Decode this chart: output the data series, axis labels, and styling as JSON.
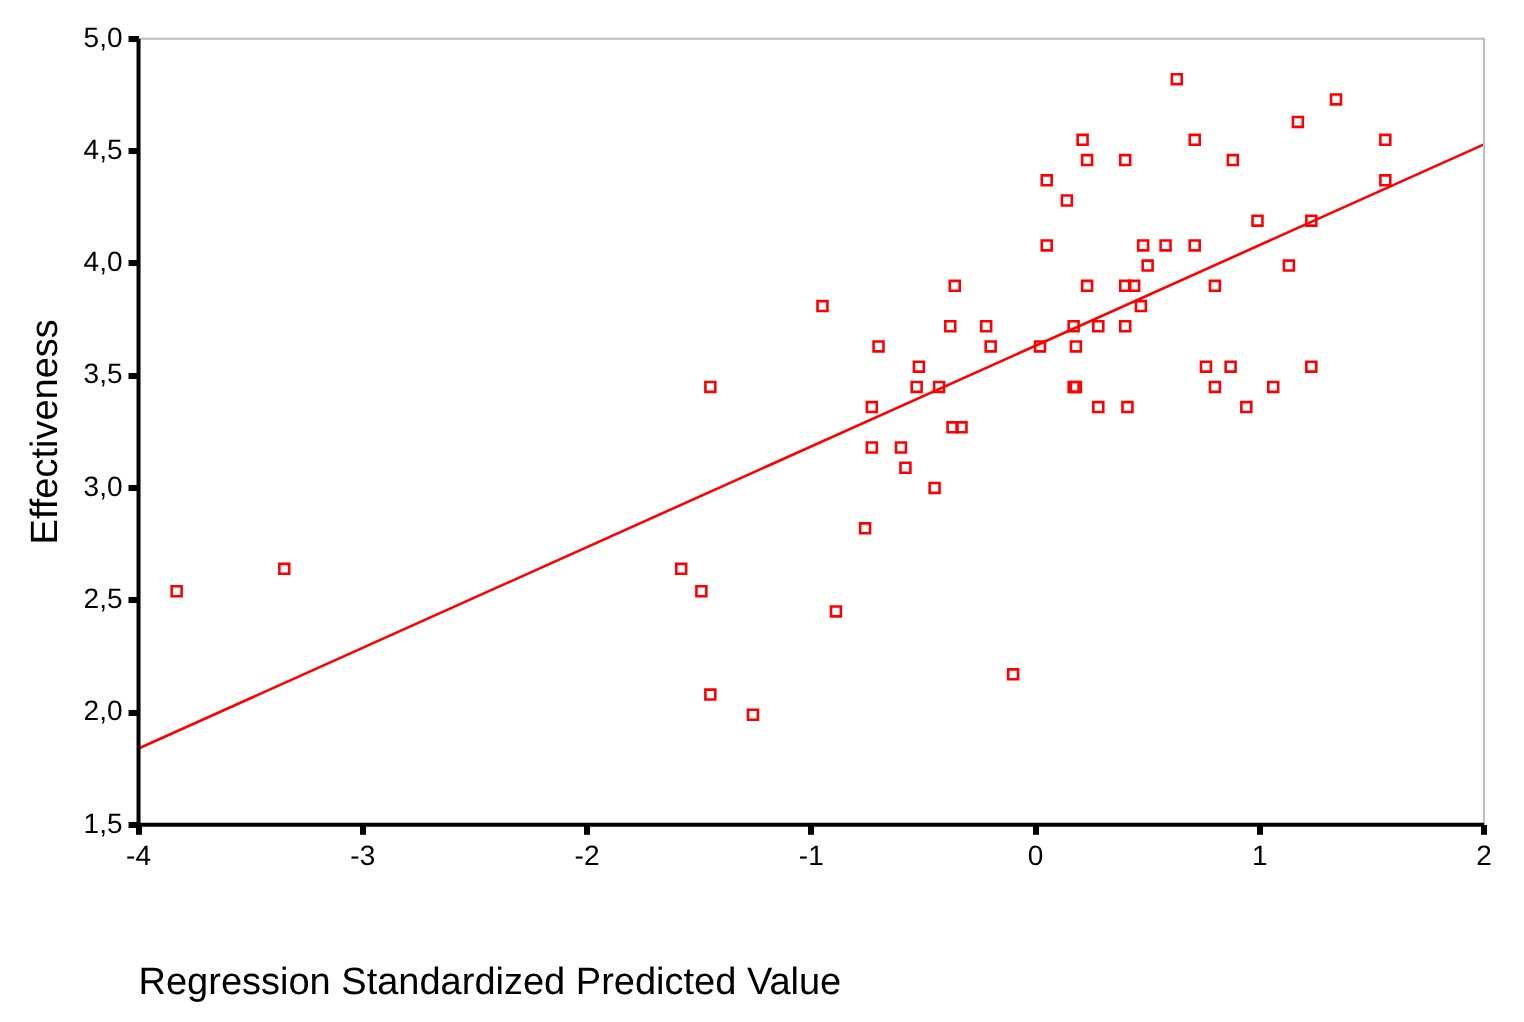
{
  "chart_data": {
    "type": "scatter",
    "xlabel": "Regression Standardized Predicted Value",
    "ylabel": "Effectiveness",
    "grid": false,
    "legend": false,
    "xlim": [
      -4,
      2
    ],
    "xticks": [
      -4,
      -3,
      -2,
      -1,
      0,
      1,
      2
    ],
    "ylim": [
      1.5,
      5.0
    ],
    "yticks": [
      {
        "value": 1.5,
        "label": "1,5"
      },
      {
        "value": 2.0,
        "label": "2,0"
      },
      {
        "value": 2.5,
        "label": "2,5"
      },
      {
        "value": 3.0,
        "label": "3,0"
      },
      {
        "value": 3.5,
        "label": "3,5"
      },
      {
        "value": 4.0,
        "label": "4,0"
      },
      {
        "value": 4.5,
        "label": "4,5"
      },
      {
        "value": 5.0,
        "label": "5,0"
      }
    ],
    "series": [
      {
        "color": "#ff0000",
        "marker": "square",
        "x": [
          -3.83,
          -3.35,
          -1.58,
          -1.49,
          -1.45,
          -1.45,
          -1.26,
          -0.95,
          -0.89,
          -0.76,
          -0.73,
          -0.73,
          -0.7,
          -0.6,
          -0.58,
          -0.52,
          -0.53,
          -0.45,
          -0.43,
          -0.38,
          -0.36,
          -0.37,
          -0.33,
          -0.22,
          -0.2,
          -0.1,
          0.63,
          1.34,
          1.17,
          0.21,
          0.71,
          0.23,
          0.4,
          0.88,
          0.05,
          0.14,
          0.99,
          1.23,
          0.05,
          0.48,
          0.58,
          0.71,
          0.5,
          1.13,
          0.23,
          0.4,
          0.44,
          0.8,
          0.47,
          0.17,
          0.28,
          0.4,
          0.02,
          0.18,
          0.76,
          0.87,
          1.23,
          0.17,
          0.18,
          0.8,
          1.06,
          0.28,
          0.41,
          0.94,
          1.56,
          1.56
        ],
        "values": [
          2.54,
          2.64,
          2.64,
          2.54,
          3.45,
          2.08,
          1.99,
          3.81,
          2.45,
          2.82,
          3.36,
          3.18,
          3.63,
          3.18,
          3.09,
          3.54,
          3.45,
          3.0,
          3.45,
          3.72,
          3.9,
          3.27,
          3.27,
          3.72,
          3.63,
          2.17,
          4.82,
          4.73,
          4.63,
          4.55,
          4.55,
          4.46,
          4.46,
          4.46,
          4.37,
          4.28,
          4.19,
          4.19,
          4.08,
          4.08,
          4.08,
          4.08,
          3.99,
          3.99,
          3.9,
          3.9,
          3.9,
          3.9,
          3.81,
          3.72,
          3.72,
          3.72,
          3.63,
          3.63,
          3.54,
          3.54,
          3.54,
          3.45,
          3.45,
          3.45,
          3.45,
          3.36,
          3.36,
          3.36,
          4.55,
          4.37
        ]
      },
      {
        "type": "line",
        "color": "#ff0000",
        "marker": "none",
        "x": [
          -4,
          2
        ],
        "values": [
          1.84,
          4.53
        ]
      }
    ]
  }
}
